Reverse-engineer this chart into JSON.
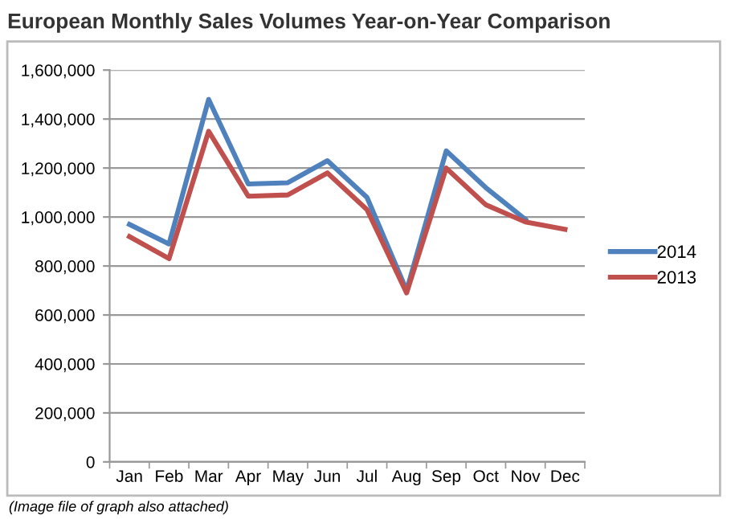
{
  "chart_data": {
    "type": "line",
    "title": "European Monthly Sales Volumes Year-on-Year Comparison",
    "categories": [
      "Jan",
      "Feb",
      "Mar",
      "Apr",
      "May",
      "Jun",
      "Jul",
      "Aug",
      "Sep",
      "Oct",
      "Nov",
      "Dec"
    ],
    "series": [
      {
        "name": "2014",
        "color": "#4f81bd",
        "values": [
          970000,
          890000,
          1480000,
          1135000,
          1140000,
          1230000,
          1080000,
          700000,
          1270000,
          1120000,
          990000,
          null
        ]
      },
      {
        "name": "2013",
        "color": "#c0504d",
        "values": [
          920000,
          830000,
          1350000,
          1085000,
          1090000,
          1180000,
          1030000,
          690000,
          1200000,
          1050000,
          980000,
          950000
        ]
      }
    ],
    "ylim": [
      0,
      1600000
    ],
    "yticks": [
      {
        "value": 0,
        "label": "0"
      },
      {
        "value": 200000,
        "label": "200,000"
      },
      {
        "value": 400000,
        "label": "400,000"
      },
      {
        "value": 600000,
        "label": "600,000"
      },
      {
        "value": 800000,
        "label": "800,000"
      },
      {
        "value": 1000000,
        "label": "1,000,000"
      },
      {
        "value": 1200000,
        "label": "1,200,000"
      },
      {
        "value": 1400000,
        "label": "1,400,000"
      },
      {
        "value": 1600000,
        "label": "1,600,000"
      }
    ],
    "grid": "y",
    "legend": "right",
    "marker": "none",
    "line_style": "solid",
    "annotations": [
      "(Image file of graph also attached)"
    ]
  }
}
